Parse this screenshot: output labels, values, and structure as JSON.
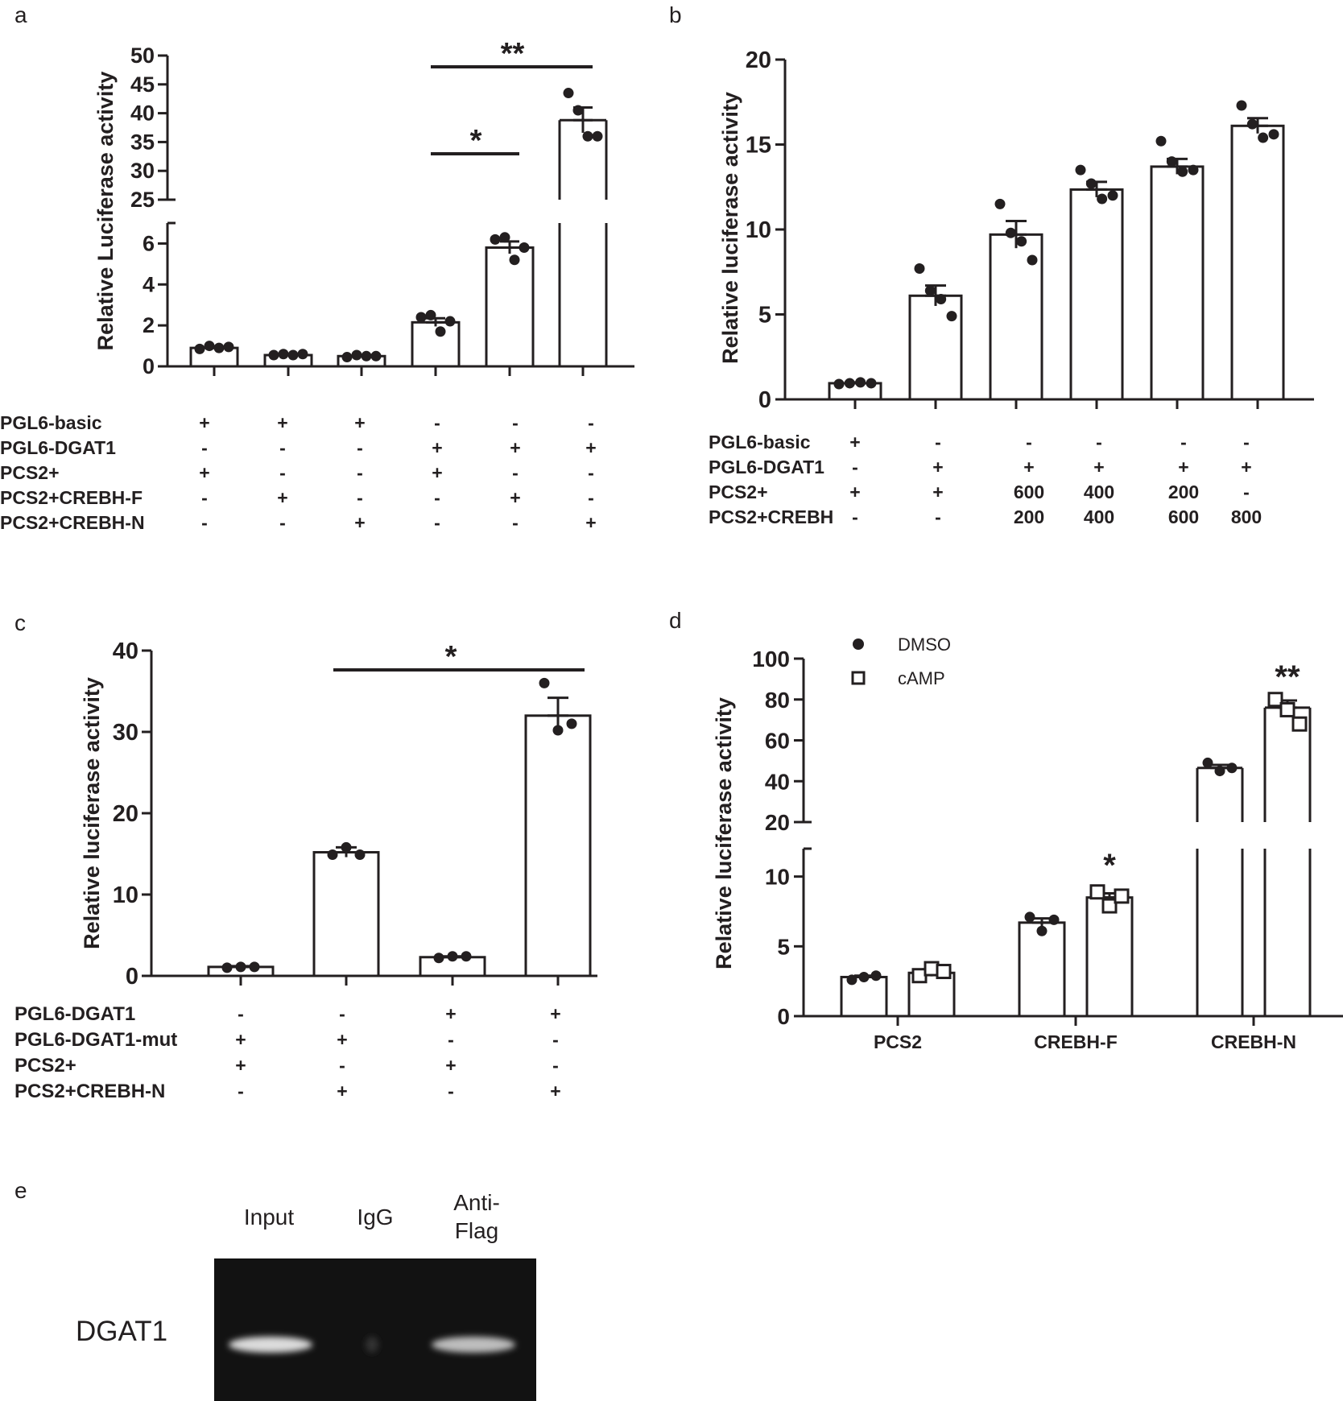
{
  "panel_labels": [
    "a",
    "b",
    "c",
    "d",
    "e"
  ],
  "chart_data": [
    {
      "panel": "a",
      "type": "bar",
      "ylabel": "Relative Luciferase activity",
      "y_axis_break": true,
      "ylim_lower": [
        0,
        7
      ],
      "ylim_upper": [
        25,
        50
      ],
      "yticks_lower": [
        "0",
        "2",
        "4",
        "6"
      ],
      "yticks_upper": [
        "25",
        "30",
        "35",
        "40",
        "45",
        "50"
      ],
      "bars": [
        {
          "value": 0.9,
          "sem": 0.05,
          "points": [
            0.85,
            1.0,
            0.9,
            0.95
          ]
        },
        {
          "value": 0.55,
          "sem": 0.03,
          "points": [
            0.55,
            0.6,
            0.55,
            0.6
          ]
        },
        {
          "value": 0.5,
          "sem": 0.03,
          "points": [
            0.45,
            0.55,
            0.5,
            0.5
          ]
        },
        {
          "value": 2.15,
          "sem": 0.2,
          "points": [
            2.4,
            2.5,
            1.7,
            2.2
          ]
        },
        {
          "value": 5.8,
          "sem": 0.3,
          "points": [
            6.2,
            6.3,
            5.2,
            5.8
          ]
        },
        {
          "value": 38.8,
          "sem": 2.2,
          "points": [
            43.5,
            40.5,
            36.0,
            36.0
          ]
        }
      ],
      "significance": [
        {
          "from": 3,
          "to": 4,
          "label": "*"
        },
        {
          "from": 3,
          "to": 5,
          "label": "**"
        }
      ],
      "conditions": [
        {
          "name": "PGL6-basic",
          "values": [
            "+",
            "+",
            "+",
            "-",
            "-",
            "-"
          ]
        },
        {
          "name": "PGL6-DGAT1",
          "values": [
            "-",
            "-",
            "-",
            "+",
            "+",
            "+"
          ]
        },
        {
          "name": "PCS2+",
          "values": [
            "+",
            "-",
            "-",
            "+",
            "-",
            "-"
          ]
        },
        {
          "name": "PCS2+CREBH-F",
          "values": [
            "-",
            "+",
            "-",
            "-",
            "+",
            "-"
          ]
        },
        {
          "name": "PCS2+CREBH-N",
          "values": [
            "-",
            "-",
            "+",
            "-",
            "-",
            "+"
          ]
        }
      ]
    },
    {
      "panel": "b",
      "type": "bar",
      "ylabel": "Relative luciferase activity",
      "ylim": [
        0,
        20
      ],
      "yticks": [
        "0",
        "5",
        "10",
        "15",
        "20"
      ],
      "bars": [
        {
          "value": 0.95,
          "sem": 0.05,
          "points": [
            0.9,
            0.95,
            1.0,
            0.95
          ]
        },
        {
          "value": 6.1,
          "sem": 0.6,
          "points": [
            7.7,
            6.4,
            5.9,
            4.9
          ]
        },
        {
          "value": 9.7,
          "sem": 0.8,
          "points": [
            11.5,
            9.8,
            9.3,
            8.2
          ]
        },
        {
          "value": 12.35,
          "sem": 0.45,
          "points": [
            13.5,
            12.7,
            11.8,
            12.0
          ]
        },
        {
          "value": 13.7,
          "sem": 0.45,
          "points": [
            15.2,
            14.0,
            13.4,
            13.5
          ]
        },
        {
          "value": 16.1,
          "sem": 0.45,
          "points": [
            17.3,
            16.2,
            15.4,
            15.6
          ]
        }
      ],
      "conditions": [
        {
          "name": "PGL6-basic",
          "values": [
            "+",
            "-",
            "-",
            "-",
            "-",
            "-"
          ]
        },
        {
          "name": "PGL6-DGAT1",
          "values": [
            "-",
            "+",
            "+",
            "+",
            "+",
            "+"
          ]
        },
        {
          "name": "PCS2+",
          "values": [
            "+",
            "+",
            "600",
            "400",
            "200",
            "-"
          ]
        },
        {
          "name": "PCS2+CREBH",
          "values": [
            "-",
            "-",
            "200",
            "400",
            "600",
            "800"
          ]
        }
      ]
    },
    {
      "panel": "c",
      "type": "bar",
      "ylabel": "Relative luciferase activity",
      "ylim": [
        0,
        40
      ],
      "yticks": [
        "0",
        "10",
        "20",
        "30",
        "40"
      ],
      "bars": [
        {
          "value": 1.1,
          "sem": 0.1,
          "points": [
            1.0,
            1.1,
            1.1
          ]
        },
        {
          "value": 15.2,
          "sem": 0.6,
          "points": [
            14.9,
            15.8,
            14.9
          ]
        },
        {
          "value": 2.3,
          "sem": 0.1,
          "points": [
            2.2,
            2.4,
            2.4
          ]
        },
        {
          "value": 32.0,
          "sem": 2.2,
          "points": [
            36.0,
            30.2,
            31.0
          ]
        }
      ],
      "significance": [
        {
          "from": 1,
          "to": 3,
          "label": "*"
        }
      ],
      "conditions": [
        {
          "name": "PGL6-DGAT1",
          "values": [
            "-",
            "-",
            "+",
            "+"
          ]
        },
        {
          "name": "PGL6-DGAT1-mut",
          "values": [
            "+",
            "+",
            "-",
            "-"
          ]
        },
        {
          "name": "PCS2+",
          "values": [
            "+",
            "-",
            "+",
            "-"
          ]
        },
        {
          "name": "PCS2+CREBH-N",
          "values": [
            "-",
            "+",
            "-",
            "+"
          ]
        }
      ]
    },
    {
      "panel": "d",
      "type": "bar",
      "ylabel": "Relative luciferase activity",
      "y_axis_break": true,
      "ylim_lower": [
        0,
        12
      ],
      "ylim_upper": [
        20,
        100
      ],
      "yticks_lower": [
        "0",
        "5",
        "10"
      ],
      "yticks_upper": [
        "20",
        "40",
        "60",
        "80",
        "100"
      ],
      "categories": [
        "PCS2",
        "CREBH-F",
        "CREBH-N"
      ],
      "legend": [
        {
          "name": "DMSO",
          "marker": "filled-circle"
        },
        {
          "name": "cAMP",
          "marker": "open-square"
        }
      ],
      "series": [
        {
          "name": "DMSO",
          "values": [
            2.8,
            6.7,
            46.5
          ],
          "sem": [
            0.1,
            0.3,
            1.5
          ],
          "points": [
            [
              2.6,
              2.8,
              2.9
            ],
            [
              7.1,
              6.1,
              6.9
            ],
            [
              49.0,
              45.0,
              46.5
            ]
          ]
        },
        {
          "name": "cAMP",
          "values": [
            3.1,
            8.5,
            76.0
          ],
          "sem": [
            0.25,
            0.3,
            3.5
          ],
          "points": [
            [
              2.9,
              3.4,
              3.2
            ],
            [
              8.9,
              7.9,
              8.6
            ],
            [
              80.0,
              75.0,
              68.0
            ]
          ]
        }
      ],
      "significance": [
        {
          "category": 1,
          "series": 1,
          "label": "*"
        },
        {
          "category": 2,
          "series": 1,
          "label": "**"
        }
      ]
    }
  ],
  "gel": {
    "panel": "e",
    "lane_labels": [
      "Input",
      "IgG",
      "Anti-\nFlag"
    ],
    "row_label": "DGAT1",
    "band_intensity": [
      0.9,
      0.05,
      0.75
    ]
  }
}
